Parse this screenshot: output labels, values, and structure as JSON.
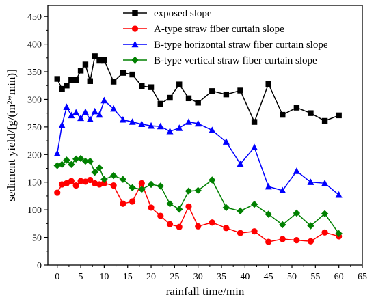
{
  "chart_data": {
    "type": "line",
    "xlabel": "rainfall time/min",
    "ylabel": "sediment yield/[g/(m²*min)]",
    "xlim": [
      -2,
      65
    ],
    "ylim": [
      0,
      470
    ],
    "xticks": [
      0,
      5,
      10,
      15,
      20,
      25,
      30,
      35,
      40,
      45,
      50,
      55,
      60,
      65
    ],
    "yticks": [
      0,
      50,
      100,
      150,
      200,
      250,
      300,
      350,
      400,
      450
    ],
    "legend_position": "top-right",
    "grid": false,
    "series": [
      {
        "name": "exposed slope",
        "color": "#000000",
        "marker": "square",
        "x": [
          0,
          1,
          2,
          3,
          4,
          5,
          6,
          7,
          8,
          9,
          10,
          12,
          14,
          16,
          18,
          20,
          22,
          24,
          26,
          28,
          30,
          33,
          36,
          39,
          42,
          45,
          48,
          51,
          54,
          57,
          60
        ],
        "y": [
          337,
          319,
          325,
          335,
          335,
          352,
          363,
          333,
          378,
          371,
          371,
          332,
          348,
          345,
          324,
          322,
          292,
          303,
          327,
          302,
          294,
          315,
          309,
          316,
          259,
          328,
          272,
          285,
          275,
          261,
          271
        ]
      },
      {
        "name": "A-type straw fiber curtain slope",
        "color": "#ff0000",
        "marker": "circle",
        "x": [
          0,
          1,
          2,
          3,
          4,
          5,
          6,
          7,
          8,
          9,
          10,
          12,
          14,
          16,
          18,
          20,
          22,
          24,
          26,
          28,
          30,
          33,
          36,
          39,
          42,
          45,
          48,
          51,
          54,
          57,
          60
        ],
        "y": [
          131,
          146,
          148,
          152,
          144,
          152,
          151,
          154,
          148,
          146,
          148,
          144,
          111,
          115,
          148,
          104,
          89,
          74,
          69,
          106,
          70,
          77,
          67,
          58,
          61,
          42,
          47,
          45,
          43,
          59,
          52
        ]
      },
      {
        "name": "B-type horizontal straw fiber curtain slope",
        "color": "#0000ff",
        "marker": "triangle",
        "x": [
          0,
          1,
          2,
          3,
          4,
          5,
          6,
          7,
          8,
          9,
          10,
          12,
          14,
          16,
          18,
          20,
          22,
          24,
          26,
          28,
          30,
          33,
          36,
          39,
          42,
          45,
          48,
          51,
          54,
          57,
          60
        ],
        "y": [
          202,
          253,
          286,
          271,
          276,
          266,
          277,
          264,
          278,
          272,
          298,
          283,
          263,
          259,
          255,
          252,
          251,
          242,
          248,
          259,
          256,
          244,
          223,
          183,
          213,
          142,
          135,
          170,
          150,
          148,
          127
        ]
      },
      {
        "name": "B-type vertical straw fiber curtain slope",
        "color": "#008000",
        "marker": "diamond",
        "x": [
          0,
          1,
          2,
          3,
          4,
          5,
          6,
          7,
          8,
          9,
          10,
          12,
          14,
          16,
          18,
          20,
          22,
          24,
          26,
          28,
          30,
          33,
          36,
          39,
          42,
          45,
          48,
          51,
          54,
          57,
          60
        ],
        "y": [
          180,
          182,
          190,
          182,
          192,
          193,
          188,
          188,
          168,
          176,
          155,
          162,
          155,
          140,
          137,
          146,
          143,
          111,
          101,
          134,
          135,
          154,
          104,
          98,
          110,
          92,
          73,
          94,
          71,
          93,
          57
        ]
      }
    ]
  }
}
